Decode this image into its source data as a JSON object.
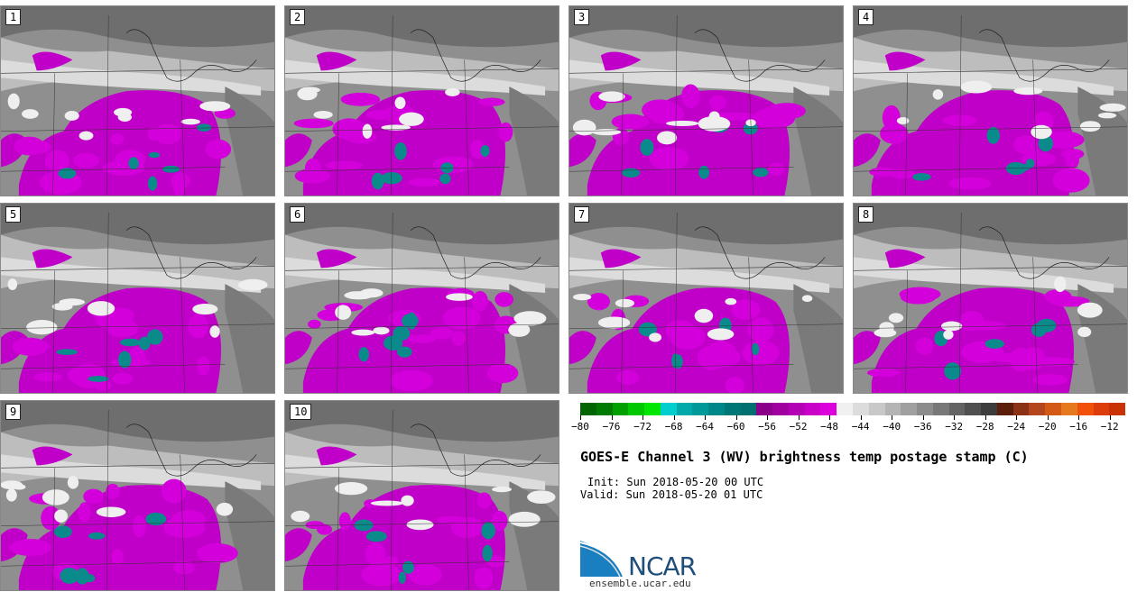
{
  "panels": [
    "1",
    "2",
    "3",
    "4",
    "5",
    "6",
    "7",
    "8",
    "9",
    "10"
  ],
  "colorbar": {
    "ticks": [
      "−80",
      "−76",
      "−72",
      "−68",
      "−64",
      "−60",
      "−56",
      "−52",
      "−48",
      "−44",
      "−40",
      "−36",
      "−32",
      "−28",
      "−24",
      "−20",
      "−16",
      "−12"
    ],
    "colors": [
      "#006400",
      "#007a00",
      "#00a000",
      "#00c800",
      "#00e600",
      "#00cdcd",
      "#00aaaa",
      "#009999",
      "#008888",
      "#007777",
      "#006f6f",
      "#8b008b",
      "#a000a0",
      "#b400b4",
      "#c800c8",
      "#dc00dc",
      "#f0f0f0",
      "#dcdcdc",
      "#c8c8c8",
      "#b4b4b4",
      "#a0a0a0",
      "#8c8c8c",
      "#787878",
      "#646464",
      "#505050",
      "#3c3c3c",
      "#5a1e0a",
      "#8b3214",
      "#b4461e",
      "#d25a14",
      "#e6781e",
      "#f0500a",
      "#dc3c0a",
      "#c83205"
    ]
  },
  "title": "GOES-E Channel 3 (WV) brightness temp postage stamp (C)",
  "init": "Init: Sun 2018-05-20 00 UTC",
  "valid": "Valid: Sun 2018-05-20 01 UTC",
  "logo": {
    "name": "NCAR",
    "url": "ensemble.ucar.edu"
  }
}
